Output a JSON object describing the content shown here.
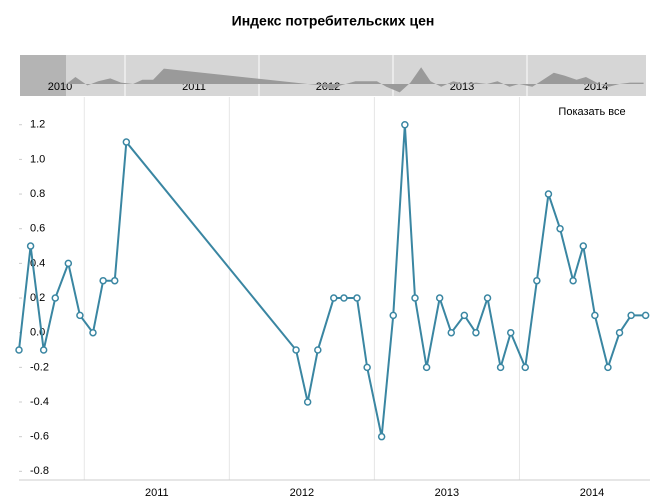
{
  "chart_data": {
    "type": "line",
    "title": "Индекс потребительских цен",
    "reset_button": "Показать все",
    "navigator_labels": [
      "2010",
      "2011",
      "2012",
      "2013",
      "2014"
    ],
    "color": "#3a86a2",
    "x": [
      2010.55,
      2010.63,
      2010.72,
      2010.8,
      2010.89,
      2010.97,
      2011.06,
      2011.13,
      2011.21,
      2011.29,
      2012.46,
      2012.54,
      2012.61,
      2012.72,
      2012.79,
      2012.88,
      2012.95,
      2013.05,
      2013.13,
      2013.21,
      2013.28,
      2013.36,
      2013.45,
      2013.53,
      2013.62,
      2013.7,
      2013.78,
      2013.87,
      2013.94,
      2014.04,
      2014.12,
      2014.2,
      2014.28,
      2014.37,
      2014.44,
      2014.52,
      2014.61,
      2014.69,
      2014.77,
      2014.87
    ],
    "values": [
      -0.1,
      0.5,
      -0.1,
      0.2,
      0.4,
      0.1,
      0.0,
      0.3,
      0.3,
      1.1,
      -0.1,
      -0.4,
      -0.1,
      0.2,
      0.2,
      0.2,
      -0.2,
      -0.6,
      0.1,
      1.2,
      0.2,
      -0.2,
      0.2,
      0.0,
      0.1,
      0.0,
      0.2,
      -0.2,
      0.0,
      -0.2,
      0.3,
      0.8,
      0.6,
      0.3,
      0.5,
      0.1,
      -0.2,
      0.0,
      0.1,
      0.1
    ],
    "xlim": [
      2010.55,
      2014.9
    ],
    "xticks": [
      {
        "value": 2011,
        "label": "2011"
      },
      {
        "value": 2012,
        "label": "2012"
      },
      {
        "value": 2013,
        "label": "2013"
      },
      {
        "value": 2014,
        "label": "2014"
      }
    ],
    "ylim": [
      -0.85,
      1.36
    ],
    "yticks": [
      {
        "value": 1.2,
        "label": "1.2"
      },
      {
        "value": 1.0,
        "label": "1.0"
      },
      {
        "value": 0.8,
        "label": "0.8"
      },
      {
        "value": 0.6,
        "label": "0.6"
      },
      {
        "value": 0.4,
        "label": "0.4"
      },
      {
        "value": 0.2,
        "label": "0.2"
      },
      {
        "value": 0,
        "label": "0.0"
      },
      {
        "value": -0.2,
        "label": "-0.2"
      },
      {
        "value": -0.4,
        "label": "-0.4"
      },
      {
        "value": -0.6,
        "label": "-0.6"
      },
      {
        "value": -0.8,
        "label": "-0.8"
      }
    ],
    "grid": true
  }
}
